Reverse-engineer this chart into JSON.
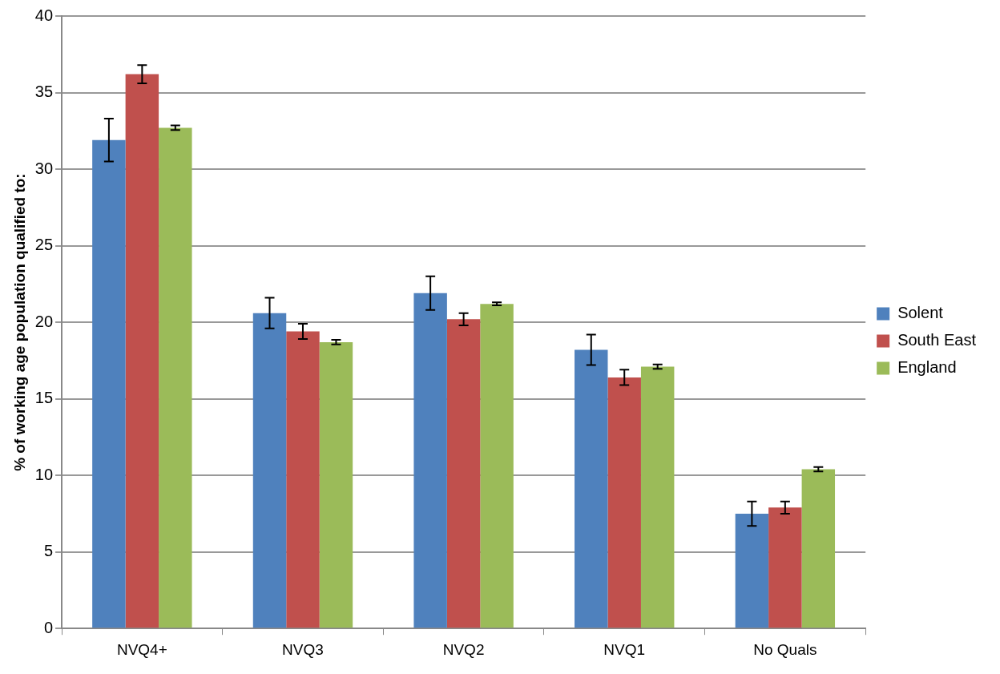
{
  "chart_data": {
    "type": "bar",
    "ylabel": "% of working age population qualified to:",
    "categories": [
      "NVQ4+",
      "NVQ3",
      "NVQ2",
      "NVQ1",
      "No Quals"
    ],
    "series": [
      {
        "name": "Solent",
        "color": "#4f81bd",
        "values": [
          31.9,
          20.6,
          21.9,
          18.2,
          7.5
        ],
        "errors": [
          1.4,
          1.0,
          1.1,
          1.0,
          0.8
        ]
      },
      {
        "name": "South East",
        "color": "#c0504d",
        "values": [
          36.2,
          19.4,
          20.2,
          16.4,
          7.9
        ],
        "errors": [
          0.6,
          0.5,
          0.4,
          0.5,
          0.4
        ]
      },
      {
        "name": "England",
        "color": "#9bbb59",
        "values": [
          32.7,
          18.7,
          21.2,
          17.1,
          10.4
        ],
        "errors": [
          0.15,
          0.15,
          0.1,
          0.15,
          0.15
        ]
      }
    ],
    "ylim": [
      0,
      40
    ],
    "yticks": [
      0,
      5,
      10,
      15,
      20,
      25,
      30,
      35,
      40
    ],
    "grid": "y",
    "legend": "right"
  }
}
